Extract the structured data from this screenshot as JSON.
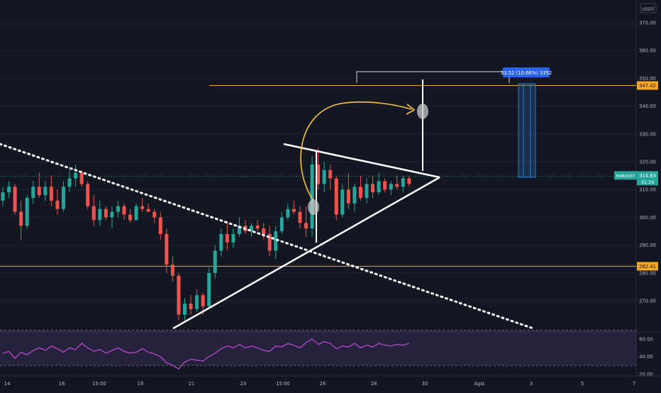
{
  "chart_data": {
    "type": "candlestick",
    "symbol": "BNBUSDT",
    "currency": "USDT",
    "last_price": "314.83",
    "countdown": "31:29",
    "price_axis": {
      "ticks": [
        "370.00",
        "360.00",
        "350.00",
        "340.00",
        "330.00",
        "320.00",
        "310.00",
        "300.00",
        "290.00",
        "280.00",
        "270.00"
      ],
      "range": [
        262,
        380
      ]
    },
    "time_axis": {
      "labels": [
        "14",
        "16",
        "15:00",
        "19",
        "21",
        "23",
        "15:00",
        "26",
        "28",
        "30",
        "Agst",
        "3",
        "5",
        "7"
      ]
    },
    "levels": [
      {
        "price": 347.42,
        "label": "347.42",
        "color": "#f5a623"
      },
      {
        "price": 282.41,
        "label": "282.41",
        "color": "#f5a623"
      }
    ],
    "measure": {
      "label": "33.52 (10.66%) 3352"
    },
    "candles": [
      [
        306,
        311,
        304,
        309
      ],
      [
        309,
        313,
        307,
        311
      ],
      [
        311,
        312,
        301,
        302
      ],
      [
        302,
        306,
        292,
        297
      ],
      [
        297,
        308,
        296,
        307
      ],
      [
        307,
        313,
        305,
        311
      ],
      [
        311,
        316,
        307,
        308
      ],
      [
        308,
        313,
        306,
        311
      ],
      [
        311,
        315,
        304,
        306
      ],
      [
        306,
        310,
        301,
        303
      ],
      [
        303,
        313,
        302,
        311
      ],
      [
        311,
        317,
        309,
        314
      ],
      [
        314,
        319,
        311,
        316
      ],
      [
        316,
        317,
        311,
        312
      ],
      [
        312,
        313,
        303,
        304
      ],
      [
        304,
        308,
        297,
        299
      ],
      [
        299,
        306,
        297,
        303
      ],
      [
        303,
        304,
        299,
        300
      ],
      [
        300,
        304,
        296,
        302
      ],
      [
        302,
        306,
        300,
        304
      ],
      [
        304,
        305,
        299,
        301
      ],
      [
        301,
        303,
        298,
        299
      ],
      [
        299,
        305,
        299,
        304
      ],
      [
        304,
        307,
        302,
        303
      ],
      [
        303,
        305,
        302,
        302
      ],
      [
        302,
        303,
        298,
        300
      ],
      [
        300,
        302,
        292,
        294
      ],
      [
        294,
        296,
        280,
        283
      ],
      [
        283,
        286,
        277,
        279
      ],
      [
        279,
        280,
        263,
        265
      ],
      [
        265,
        271,
        263,
        269
      ],
      [
        269,
        272,
        265,
        267
      ],
      [
        267,
        274,
        266,
        272
      ],
      [
        272,
        273,
        265,
        268
      ],
      [
        268,
        282,
        267,
        280
      ],
      [
        280,
        290,
        278,
        288
      ],
      [
        288,
        296,
        286,
        294
      ],
      [
        294,
        298,
        288,
        291
      ],
      [
        291,
        296,
        289,
        294
      ],
      [
        294,
        300,
        293,
        297
      ],
      [
        297,
        299,
        294,
        295
      ],
      [
        295,
        298,
        293,
        297
      ],
      [
        297,
        299,
        295,
        296
      ],
      [
        296,
        298,
        292,
        294
      ],
      [
        294,
        297,
        286,
        288
      ],
      [
        288,
        297,
        285,
        295
      ],
      [
        295,
        302,
        294,
        300
      ],
      [
        300,
        305,
        299,
        303
      ],
      [
        303,
        306,
        301,
        302
      ],
      [
        302,
        304,
        296,
        298
      ],
      [
        298,
        304,
        293,
        296
      ],
      [
        296,
        322,
        293,
        319
      ],
      [
        319,
        325,
        310,
        312
      ],
      [
        312,
        320,
        309,
        317
      ],
      [
        317,
        319,
        310,
        314
      ],
      [
        314,
        315,
        299,
        301
      ],
      [
        301,
        312,
        300,
        310
      ],
      [
        310,
        316,
        303,
        305
      ],
      [
        305,
        312,
        302,
        311
      ],
      [
        311,
        315,
        306,
        307
      ],
      [
        307,
        314,
        305,
        312
      ],
      [
        312,
        315,
        307,
        309
      ],
      [
        309,
        316,
        308,
        313
      ],
      [
        313,
        314,
        309,
        310
      ],
      [
        310,
        313,
        308,
        312
      ],
      [
        312,
        315,
        310,
        311
      ],
      [
        311,
        315,
        309,
        314
      ],
      [
        314,
        315,
        311,
        312
      ]
    ],
    "rsi": {
      "ticks": [
        "60.00",
        "40.00",
        "20.00"
      ],
      "range": [
        18,
        68
      ],
      "upper": 70,
      "lower": 30,
      "values": [
        44,
        46,
        38,
        45,
        42,
        47,
        50,
        47,
        52,
        49,
        45,
        50,
        48,
        55,
        50,
        46,
        48,
        44,
        47,
        50,
        46,
        44,
        45,
        49,
        45,
        43,
        40,
        33,
        30,
        26,
        34,
        37,
        36,
        35,
        40,
        44,
        49,
        52,
        50,
        54,
        50,
        52,
        50,
        47,
        46,
        52,
        51,
        55,
        53,
        50,
        56,
        60,
        54,
        57,
        55,
        49,
        52,
        51,
        55,
        50,
        53,
        51,
        55,
        53,
        52,
        54,
        53,
        55
      ]
    }
  }
}
